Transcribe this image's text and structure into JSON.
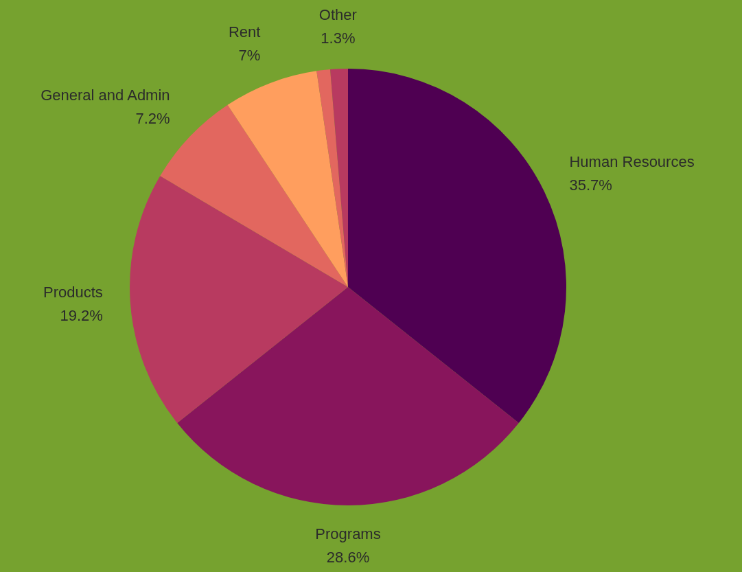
{
  "chart_data": {
    "type": "pie",
    "categories": [
      "Human Resources",
      "Programs",
      "Products",
      "General and Admin",
      "Rent",
      null,
      "Other"
    ],
    "values": [
      35.7,
      28.6,
      19.2,
      7.2,
      7,
      1,
      1.3
    ],
    "value_labels": [
      "35.7%",
      "28.6%",
      "19.2%",
      "7.2%",
      "7%",
      null,
      "1.3%"
    ],
    "colors": [
      "#4f0052",
      "#88155c",
      "#b83a60",
      "#e2675f",
      "#ff9e5e",
      "#e2675f",
      "#b83a60"
    ],
    "legend": false
  }
}
